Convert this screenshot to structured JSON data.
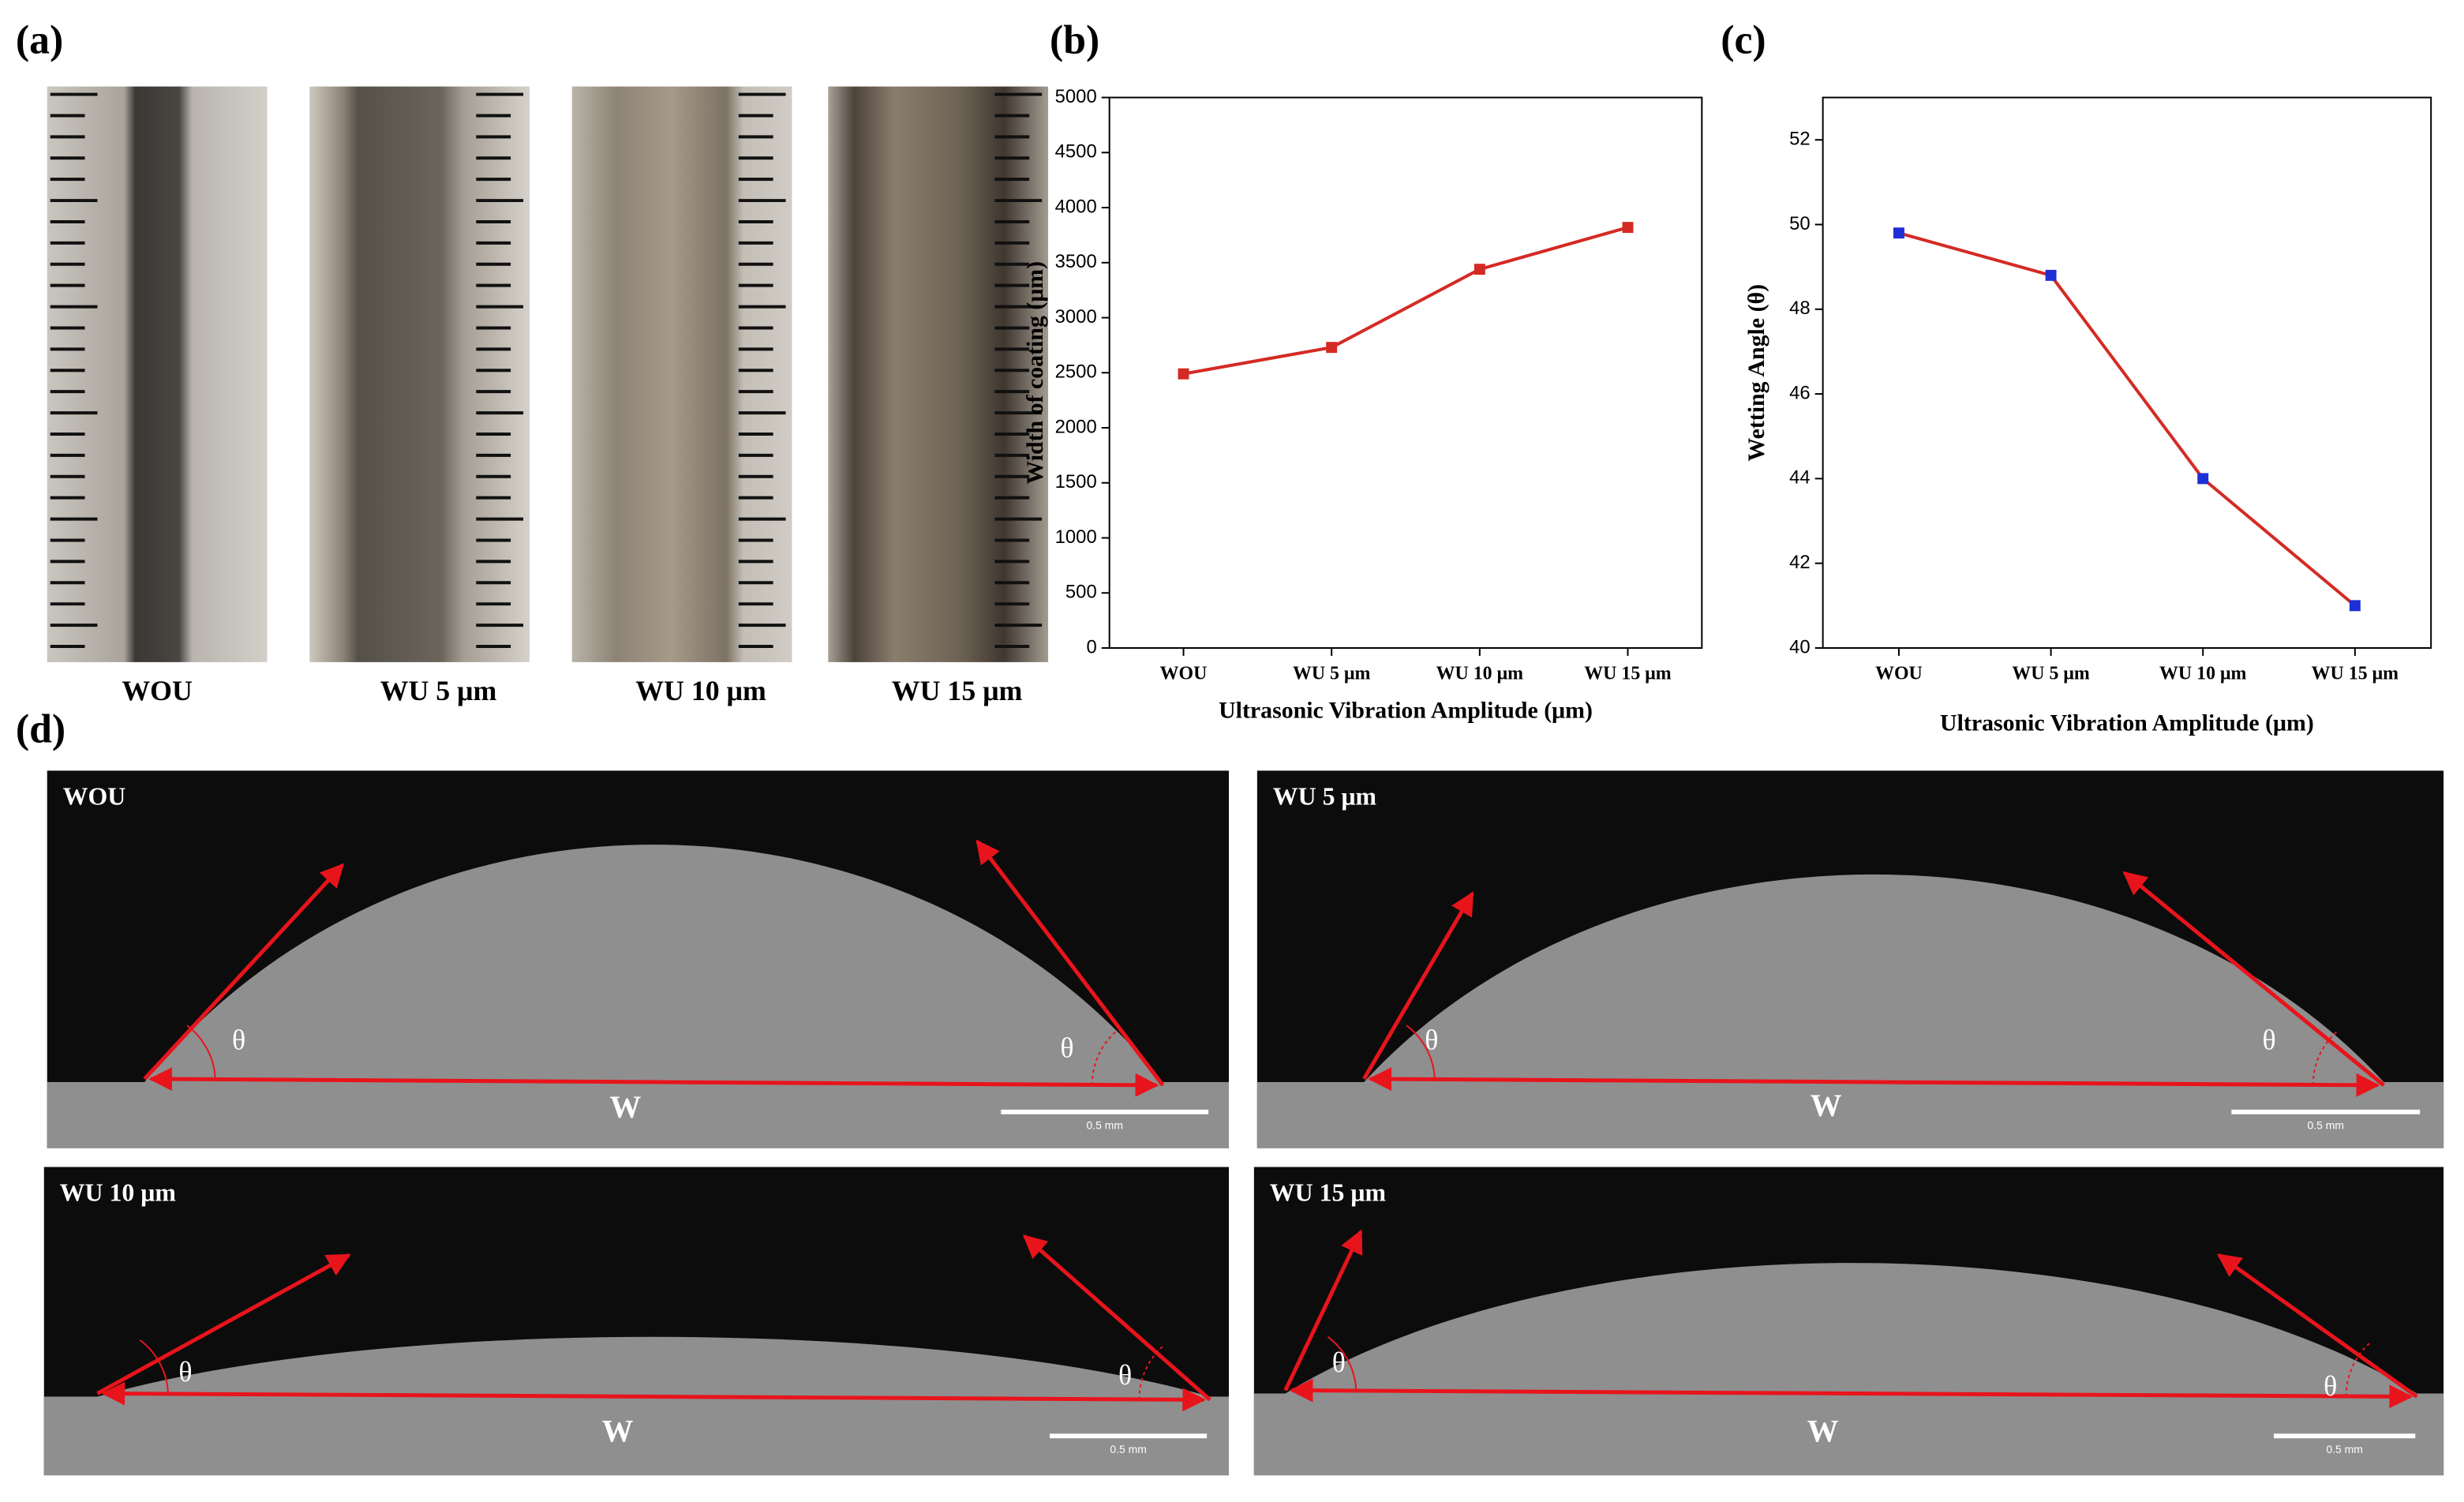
{
  "panel_labels": [
    "(a)",
    "(b)",
    "(c)",
    "(d)"
  ],
  "photos": {
    "captions": [
      "WOU",
      "WU 5 μm",
      "WU 10 μm",
      "WU 15 μm"
    ]
  },
  "chart_data": [
    {
      "type": "line",
      "categories": [
        "WOU",
        "WU 5 μm",
        "WU 10 μm",
        "WU 15 μm"
      ],
      "values": [
        2490,
        2730,
        3440,
        3820
      ],
      "line_color": "#d42a24",
      "marker_color": "#d42a24",
      "ylim": [
        0,
        5000
      ],
      "yticks": [
        0,
        500,
        1000,
        1500,
        2000,
        2500,
        3000,
        3500,
        4000,
        4500,
        5000
      ],
      "x_label": "Ultrasonic Vibration Amplitude (μm)",
      "y_label": "Width of coating (μm)"
    },
    {
      "type": "line",
      "categories": [
        "WOU",
        "WU 5 μm",
        "WU 10 μm",
        "WU 15 μm"
      ],
      "values": [
        49.8,
        48.8,
        44.0,
        41.0
      ],
      "line_color": "#d42a24",
      "marker_color": "#1f2fd6",
      "ylim": [
        40,
        53
      ],
      "yticks": [
        40,
        42,
        44,
        46,
        48,
        50,
        52
      ],
      "x_label": "Ultrasonic Vibration Amplitude (μm)",
      "y_label": "Wetting Angle (θ)"
    }
  ],
  "micrographs": [
    {
      "label": "WOU",
      "angle_symbol": "θ",
      "width_symbol": "W",
      "scale_bar": "0.5 mm"
    },
    {
      "label": "WU 5 μm",
      "angle_symbol": "θ",
      "width_symbol": "W",
      "scale_bar": "0.5 mm"
    },
    {
      "label": "WU 10 μm",
      "angle_symbol": "θ",
      "width_symbol": "W",
      "scale_bar": "0.5 mm"
    },
    {
      "label": "WU 15 μm",
      "angle_symbol": "θ",
      "width_symbol": "W",
      "scale_bar": "0.5 mm"
    }
  ]
}
